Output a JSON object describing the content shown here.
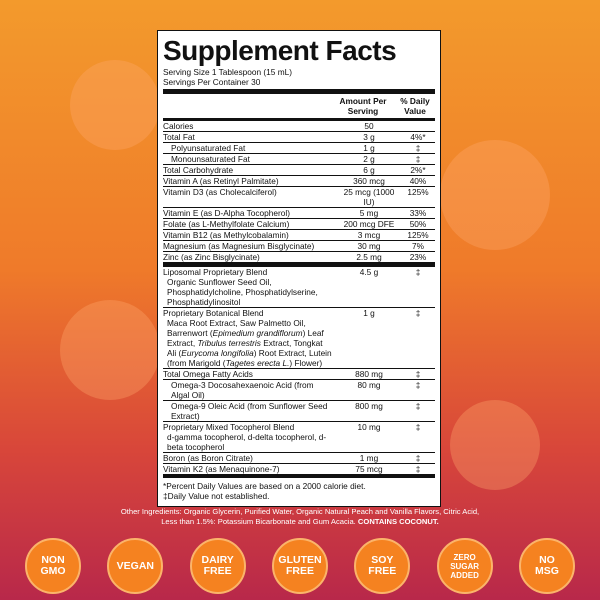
{
  "supplement_facts": {
    "title": "Supplement Facts",
    "serving_size": "Serving Size 1 Tablespoon (15 mL)",
    "servings": "Servings Per Container 30",
    "amount_header": "Amount Per Serving",
    "dv_header": "% Daily Value",
    "sections": [
      {
        "rows": [
          {
            "name": "Calories",
            "amount": "50"
          },
          {
            "name": "Total Fat",
            "amount": "3 g",
            "dv": "4%*",
            "children": [
              {
                "name": "Polyunsaturated Fat",
                "amount": "1 g",
                "dv": "‡"
              },
              {
                "name": "Monounsaturated Fat",
                "amount": "2 g",
                "dv": "‡"
              }
            ]
          },
          {
            "name": "Total Carbohydrate",
            "amount": "6 g",
            "dv": "2%*"
          },
          {
            "name": "Vitamin A (as Retinyl Palmitate)",
            "amount": "360 mcg",
            "dv": "40%"
          },
          {
            "name": "Vitamin D3 (as Cholecalciferol)",
            "amount": "25 mcg (1000 IU)",
            "dv": "125%"
          },
          {
            "name": "Vitamin E (as D-Alpha Tocopherol)",
            "amount": "5 mg",
            "dv": "33%"
          },
          {
            "name": "Folate (as L-Methylfolate Calcium)",
            "amount": "200 mcg DFE",
            "dv": "50%"
          },
          {
            "name": "Vitamin B12 (as Methylcobalamin)",
            "amount": "3 mcg",
            "dv": "125%"
          },
          {
            "name": "Magnesium (as Magnesium Bisglycinate)",
            "amount": "30 mg",
            "dv": "7%"
          },
          {
            "name": "Zinc (as Zinc Bisglycinate)",
            "amount": "2.5 mg",
            "dv": "23%"
          }
        ]
      },
      {
        "rows": [
          {
            "name": "Liposomal Proprietary Blend",
            "amount": "4.5 g",
            "dv": "‡",
            "detail": [
              "Organic Sunflower Seed Oil, Phosphatidylcholine, Phosphatidylserine, Phosphatidylinositol"
            ]
          },
          {
            "name": "Proprietary Botanical Blend",
            "amount": "1 g",
            "dv": "‡",
            "detail": [
              "Maca Root Extract, Saw Palmetto Oil, Barrenwort (",
              "Epimedium grandiflorum",
              ") Leaf Extract, ",
              "Tribulus terrestris",
              " Extract, Tongkat Ali (",
              "Eurycoma longifolia",
              ") Root Extract, Lutein (from Marigold (",
              "Tagetes erecta L.",
              ") Flower)"
            ]
          },
          {
            "name": "Total Omega Fatty Acids",
            "amount": "880 mg",
            "dv": "‡",
            "children": [
              {
                "name": "Omega-3 Docosahexaenoic Acid (from Algal Oil)",
                "amount": "80 mg",
                "dv": "‡"
              },
              {
                "name": "Omega-9 Oleic Acid (from Sunflower Seed Extract)",
                "amount": "800 mg",
                "dv": "‡"
              }
            ]
          },
          {
            "name": "Proprietary Mixed Tocopherol Blend",
            "amount": "10 mg",
            "dv": "‡",
            "detail": [
              "d-gamma tocopherol, d-delta tocopherol, d-beta tocopherol"
            ]
          },
          {
            "name": "Boron (as Boron Citrate)",
            "amount": "1 mg",
            "dv": "‡"
          },
          {
            "name": "Vitamin K2 (as Menaquinone-7)",
            "amount": "75 mcg",
            "dv": "‡"
          }
        ]
      }
    ],
    "footnotes": [
      "*Percent Daily Values are based on a 2000 calorie diet.",
      "‡Daily Value not established."
    ]
  },
  "other_ingredients": {
    "text": "Other Ingredients: Organic Glycerin, Purified Water, Organic Natural Peach and Vanilla Flavors, Citric Acid, Less than 1.5%: Potassium Bicarbonate and Gum Acacia.",
    "allergen": "CONTAINS COCONUT."
  },
  "badges": [
    "NON GMO",
    "VEGAN",
    "DAIRY FREE",
    "GLUTEN FREE",
    "SOY FREE",
    "ZERO SUGAR ADDED",
    "NO MSG"
  ]
}
